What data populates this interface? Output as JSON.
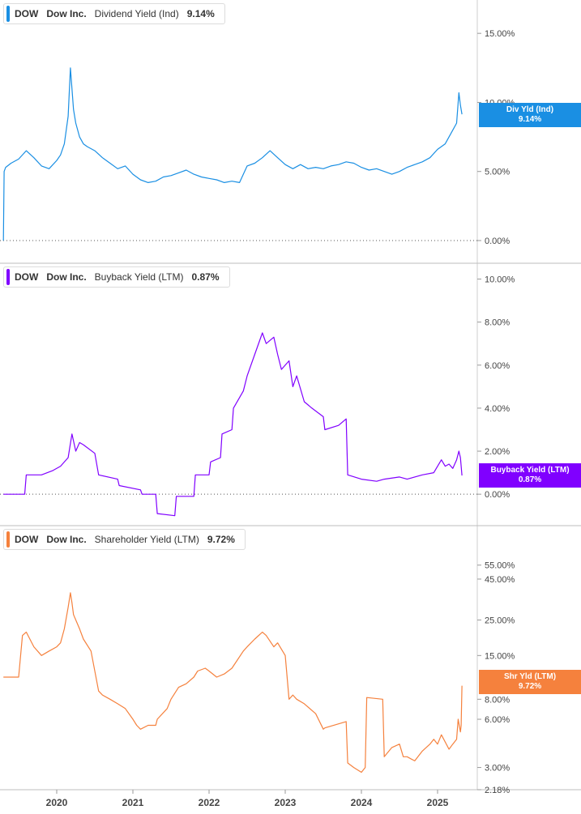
{
  "chart_data": [
    {
      "type": "line",
      "ticker": "DOW",
      "company": "Dow Inc.",
      "metric": "Dividend Yield (Ind)",
      "current_value": "9.14%",
      "badge_label": "Div Yld (Ind)",
      "badge_value": "9.14%",
      "color": "#1a8fe3",
      "scale": "linear",
      "ylim": [
        0,
        18
      ],
      "yticks": [
        {
          "value": 0,
          "label": "0.00%"
        },
        {
          "value": 5,
          "label": "5.00%"
        },
        {
          "value": 10,
          "label": "10.00%"
        },
        {
          "value": 15,
          "label": "15.00%"
        }
      ],
      "zero_line": 0,
      "series": [
        {
          "x": [
            2019.3,
            2019.31,
            2019.33,
            2019.4,
            2019.5,
            2019.6,
            2019.7,
            2019.8,
            2019.9,
            2020.0,
            2020.05,
            2020.1,
            2020.15,
            2020.18,
            2020.2,
            2020.22,
            2020.25,
            2020.3,
            2020.35,
            2020.4,
            2020.5,
            2020.6,
            2020.7,
            2020.8,
            2020.9,
            2021.0,
            2021.1,
            2021.2,
            2021.3,
            2021.4,
            2021.5,
            2021.6,
            2021.7,
            2021.8,
            2021.9,
            2022.0,
            2022.1,
            2022.2,
            2022.3,
            2022.4,
            2022.5,
            2022.6,
            2022.7,
            2022.8,
            2022.9,
            2023.0,
            2023.1,
            2023.2,
            2023.3,
            2023.4,
            2023.5,
            2023.6,
            2023.7,
            2023.8,
            2023.9,
            2024.0,
            2024.1,
            2024.2,
            2024.3,
            2024.4,
            2024.5,
            2024.6,
            2024.7,
            2024.8,
            2024.9,
            2025.0,
            2025.1,
            2025.15,
            2025.2,
            2025.25,
            2025.28,
            2025.3,
            2025.32
          ],
          "y": [
            0,
            5.0,
            5.3,
            5.6,
            5.9,
            6.5,
            6.0,
            5.4,
            5.2,
            5.8,
            6.2,
            7.0,
            9.0,
            12.5,
            11.0,
            9.5,
            8.5,
            7.5,
            7.0,
            6.8,
            6.5,
            6.0,
            5.6,
            5.2,
            5.4,
            4.8,
            4.4,
            4.2,
            4.3,
            4.6,
            4.7,
            4.9,
            5.1,
            4.8,
            4.6,
            4.5,
            4.4,
            4.2,
            4.3,
            4.2,
            5.4,
            5.6,
            6.0,
            6.5,
            6.0,
            5.5,
            5.2,
            5.5,
            5.2,
            5.3,
            5.2,
            5.4,
            5.5,
            5.7,
            5.6,
            5.3,
            5.1,
            5.2,
            5.0,
            4.8,
            5.0,
            5.3,
            5.5,
            5.7,
            6.0,
            6.6,
            7.0,
            7.5,
            8.0,
            8.5,
            10.7,
            9.8,
            9.14
          ]
        }
      ]
    },
    {
      "type": "line",
      "ticker": "DOW",
      "company": "Dow Inc.",
      "metric": "Buyback Yield (LTM)",
      "current_value": "0.87%",
      "badge_label": "Buyback Yield (LTM)",
      "badge_value": "0.87%",
      "color": "#8000ff",
      "scale": "linear",
      "ylim": [
        -1.5,
        11.0
      ],
      "yticks": [
        {
          "value": 0,
          "label": "0.00%"
        },
        {
          "value": 2,
          "label": "2.00%"
        },
        {
          "value": 4,
          "label": "4.00%"
        },
        {
          "value": 6,
          "label": "6.00%"
        },
        {
          "value": 8,
          "label": "8.00%"
        },
        {
          "value": 10,
          "label": "10.00%"
        }
      ],
      "zero_line": 0,
      "series": [
        {
          "x": [
            2019.3,
            2019.58,
            2019.6,
            2019.8,
            2019.95,
            2020.05,
            2020.15,
            2020.2,
            2020.25,
            2020.3,
            2020.35,
            2020.5,
            2020.55,
            2020.8,
            2020.82,
            2021.1,
            2021.12,
            2021.3,
            2021.32,
            2021.55,
            2021.57,
            2021.8,
            2021.82,
            2022.0,
            2022.02,
            2022.15,
            2022.17,
            2022.3,
            2022.32,
            2022.45,
            2022.5,
            2022.6,
            2022.7,
            2022.75,
            2022.85,
            2022.9,
            2022.95,
            2023.05,
            2023.1,
            2023.15,
            2023.25,
            2023.35,
            2023.5,
            2023.52,
            2023.7,
            2023.8,
            2023.82,
            2024.0,
            2024.2,
            2024.3,
            2024.5,
            2024.6,
            2024.8,
            2024.95,
            2025.05,
            2025.1,
            2025.15,
            2025.2,
            2025.25,
            2025.28,
            2025.3,
            2025.32
          ],
          "y": [
            0,
            0,
            0.9,
            0.9,
            1.1,
            1.3,
            1.7,
            2.8,
            2.0,
            2.4,
            2.3,
            1.9,
            0.9,
            0.7,
            0.4,
            0.2,
            0,
            0,
            -0.9,
            -1.0,
            -0.1,
            -0.1,
            0.9,
            0.9,
            1.5,
            1.7,
            2.8,
            3.0,
            4.0,
            4.8,
            5.5,
            6.5,
            7.5,
            7.0,
            7.3,
            6.5,
            5.8,
            6.2,
            5.0,
            5.5,
            4.3,
            4.0,
            3.6,
            3.0,
            3.2,
            3.5,
            0.9,
            0.7,
            0.6,
            0.7,
            0.8,
            0.7,
            0.9,
            1.0,
            1.6,
            1.3,
            1.4,
            1.2,
            1.6,
            2.0,
            1.7,
            0.87
          ]
        }
      ]
    },
    {
      "type": "line",
      "ticker": "DOW",
      "company": "Dow Inc.",
      "metric": "Shareholder Yield (LTM)",
      "current_value": "9.72%",
      "badge_label": "Shr Yld (LTM)",
      "badge_value": "9.72%",
      "color": "#f5813d",
      "scale": "log",
      "ylim": [
        2.18,
        70
      ],
      "yticks": [
        {
          "value": 2.18,
          "label": "2.18%"
        },
        {
          "value": 3,
          "label": "3.00%"
        },
        {
          "value": 6,
          "label": "6.00%"
        },
        {
          "value": 8,
          "label": "8.00%"
        },
        {
          "value": 15,
          "label": "15.00%"
        },
        {
          "value": 25,
          "label": "25.00%"
        },
        {
          "value": 45,
          "label": "45.00%"
        },
        {
          "value": 55,
          "label": "55.00%"
        }
      ],
      "zero_line": null,
      "series": [
        {
          "x": [
            2019.3,
            2019.5,
            2019.55,
            2019.6,
            2019.7,
            2019.8,
            2019.9,
            2020.0,
            2020.05,
            2020.1,
            2020.15,
            2020.18,
            2020.2,
            2020.22,
            2020.25,
            2020.3,
            2020.35,
            2020.45,
            2020.55,
            2020.6,
            2020.7,
            2020.8,
            2020.9,
            2021.0,
            2021.05,
            2021.1,
            2021.2,
            2021.3,
            2021.32,
            2021.45,
            2021.5,
            2021.6,
            2021.7,
            2021.8,
            2021.85,
            2021.95,
            2022.0,
            2022.1,
            2022.2,
            2022.3,
            2022.45,
            2022.5,
            2022.6,
            2022.7,
            2022.75,
            2022.85,
            2022.9,
            2023.0,
            2023.05,
            2023.1,
            2023.15,
            2023.25,
            2023.4,
            2023.5,
            2023.52,
            2023.8,
            2023.82,
            2023.9,
            2024.0,
            2024.05,
            2024.07,
            2024.28,
            2024.3,
            2024.4,
            2024.5,
            2024.55,
            2024.6,
            2024.7,
            2024.8,
            2024.9,
            2024.95,
            2025.0,
            2025.05,
            2025.15,
            2025.2,
            2025.25,
            2025.27,
            2025.3,
            2025.31,
            2025.32
          ],
          "y": [
            11,
            11,
            20,
            21,
            17,
            15,
            16,
            17,
            18,
            22,
            30,
            37,
            32,
            27,
            25,
            22,
            19,
            16,
            9,
            8.5,
            8,
            7.5,
            7,
            6,
            5.5,
            5.2,
            5.5,
            5.5,
            6,
            7,
            8,
            9.5,
            10,
            11,
            12,
            12.5,
            12,
            11,
            11.5,
            12.5,
            16,
            17,
            19,
            21,
            20,
            17,
            18,
            15,
            8,
            8.5,
            8,
            7.5,
            6.5,
            5.2,
            5.3,
            5.8,
            3.2,
            3.0,
            2.8,
            3.0,
            8.2,
            8.0,
            3.5,
            4.0,
            4.2,
            3.5,
            3.5,
            3.3,
            3.8,
            4.2,
            4.5,
            4.2,
            4.8,
            3.9,
            4.2,
            4.5,
            6.0,
            5.0,
            5.5,
            9.72
          ]
        }
      ]
    }
  ],
  "x_axis": {
    "ticks": [
      {
        "value": 2020,
        "label": "2020"
      },
      {
        "value": 2021,
        "label": "2021"
      },
      {
        "value": 2022,
        "label": "2022"
      },
      {
        "value": 2023,
        "label": "2023"
      },
      {
        "value": 2024,
        "label": "2024"
      },
      {
        "value": 2025,
        "label": "2025"
      }
    ]
  }
}
